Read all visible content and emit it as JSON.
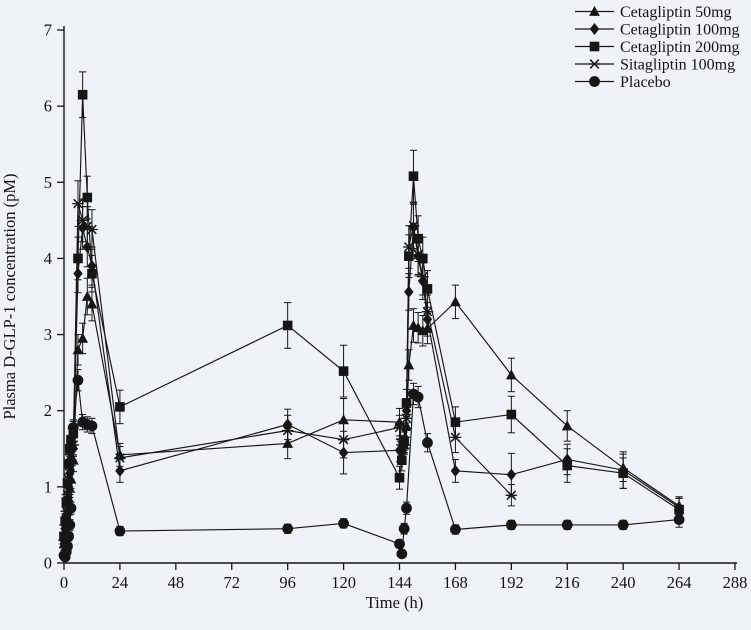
{
  "figure": {
    "background_color": "#eff2f6",
    "line_color": "#161616",
    "text_color": "#141414"
  },
  "chart_data": {
    "type": "line",
    "title": "",
    "xlabel": "Time (h)",
    "ylabel": "Plasma D-GLP-1 concentration (pM)",
    "xlim": [
      0,
      288
    ],
    "ylim": [
      0,
      7
    ],
    "xticks": [
      0,
      24,
      48,
      72,
      96,
      120,
      144,
      168,
      192,
      216,
      240,
      264,
      288
    ],
    "yticks": [
      0,
      1,
      2,
      3,
      4,
      5,
      6,
      7
    ],
    "grid": false,
    "error_bars": true,
    "legend_position": "top-right",
    "legend_entries": [
      "Cetagliptin 50mg",
      "Cetagliptin 100mg",
      "Cetagliptin 200mg",
      "Sitagliptin 100mg",
      "Placebo"
    ],
    "series": [
      {
        "name": "Cetagliptin 50mg",
        "marker": "triangle",
        "points": [
          [
            0,
            0.25,
            0.08
          ],
          [
            0.5,
            0.38,
            0.08
          ],
          [
            1,
            0.52,
            0.1
          ],
          [
            1.5,
            0.68,
            0.1
          ],
          [
            2,
            0.85,
            0.12
          ],
          [
            2.5,
            0.98,
            0.12
          ],
          [
            3,
            1.1,
            0.12
          ],
          [
            4,
            1.35,
            0.15
          ],
          [
            6,
            2.8,
            0.2
          ],
          [
            8,
            2.95,
            0.2
          ],
          [
            10,
            3.5,
            0.24
          ],
          [
            12,
            3.4,
            0.22
          ],
          [
            24,
            1.42,
            0.15
          ],
          [
            96,
            1.57,
            0.2
          ],
          [
            120,
            1.88,
            0.28
          ],
          [
            144,
            1.85,
            0.18
          ],
          [
            145,
            1.5,
            0.12
          ],
          [
            146,
            1.55,
            0.12
          ],
          [
            147,
            1.8,
            0.15
          ],
          [
            148,
            2.6,
            0.2
          ],
          [
            150,
            3.12,
            0.22
          ],
          [
            152,
            3.09,
            0.2
          ],
          [
            154,
            3.05,
            0.2
          ],
          [
            156,
            3.08,
            0.2
          ],
          [
            168,
            3.43,
            0.22
          ],
          [
            192,
            2.47,
            0.22
          ],
          [
            216,
            1.8,
            0.2
          ],
          [
            240,
            1.25,
            0.18
          ],
          [
            264,
            0.75,
            0.12
          ]
        ]
      },
      {
        "name": "Cetagliptin 100mg",
        "marker": "diamond",
        "points": [
          [
            0,
            0.3,
            0.08
          ],
          [
            0.5,
            0.45,
            0.08
          ],
          [
            1,
            0.62,
            0.1
          ],
          [
            1.5,
            0.82,
            0.1
          ],
          [
            2,
            1.0,
            0.12
          ],
          [
            2.5,
            1.18,
            0.12
          ],
          [
            3,
            1.35,
            0.14
          ],
          [
            4,
            1.5,
            0.15
          ],
          [
            6,
            3.8,
            0.25
          ],
          [
            8,
            4.4,
            0.28
          ],
          [
            10,
            4.15,
            0.26
          ],
          [
            12,
            3.9,
            0.25
          ],
          [
            24,
            1.21,
            0.15
          ],
          [
            96,
            1.82,
            0.2
          ],
          [
            120,
            1.45,
            0.28
          ],
          [
            144,
            1.48,
            0.15
          ],
          [
            145,
            1.45,
            0.12
          ],
          [
            146,
            1.6,
            0.12
          ],
          [
            147,
            2.0,
            0.16
          ],
          [
            148,
            3.56,
            0.24
          ],
          [
            150,
            4.41,
            0.3
          ],
          [
            152,
            4.03,
            0.26
          ],
          [
            154,
            3.7,
            0.24
          ],
          [
            156,
            3.2,
            0.22
          ],
          [
            168,
            1.21,
            0.15
          ],
          [
            192,
            1.16,
            0.28
          ],
          [
            216,
            1.36,
            0.2
          ],
          [
            240,
            1.22,
            0.24
          ],
          [
            264,
            0.73,
            0.12
          ]
        ]
      },
      {
        "name": "Cetagliptin 200mg",
        "marker": "square",
        "points": [
          [
            0,
            0.35,
            0.1
          ],
          [
            0.5,
            0.55,
            0.1
          ],
          [
            1,
            0.8,
            0.1
          ],
          [
            1.5,
            1.05,
            0.12
          ],
          [
            2,
            1.3,
            0.13
          ],
          [
            2.5,
            1.5,
            0.14
          ],
          [
            3,
            1.62,
            0.15
          ],
          [
            4,
            1.7,
            0.16
          ],
          [
            6,
            4.0,
            0.28
          ],
          [
            8,
            6.15,
            0.3
          ],
          [
            10,
            4.8,
            0.28
          ],
          [
            12,
            3.8,
            0.24
          ],
          [
            24,
            2.05,
            0.22
          ],
          [
            96,
            3.12,
            0.3
          ],
          [
            120,
            2.52,
            0.34
          ],
          [
            144,
            1.12,
            0.15
          ],
          [
            145,
            1.35,
            0.14
          ],
          [
            146,
            1.6,
            0.15
          ],
          [
            147,
            2.1,
            0.18
          ],
          [
            148,
            4.03,
            0.28
          ],
          [
            150,
            5.08,
            0.34
          ],
          [
            152,
            4.26,
            0.3
          ],
          [
            154,
            4.0,
            0.28
          ],
          [
            156,
            3.6,
            0.24
          ],
          [
            168,
            1.85,
            0.2
          ],
          [
            192,
            1.95,
            0.24
          ],
          [
            216,
            1.28,
            0.22
          ],
          [
            240,
            1.18,
            0.2
          ],
          [
            264,
            0.7,
            0.15
          ]
        ]
      },
      {
        "name": "Sitagliptin 100mg",
        "marker": "star",
        "points": [
          [
            0,
            0.3,
            0.08
          ],
          [
            0.5,
            0.5,
            0.08
          ],
          [
            1,
            0.68,
            0.1
          ],
          [
            1.5,
            0.9,
            0.1
          ],
          [
            2,
            1.1,
            0.12
          ],
          [
            2.5,
            1.28,
            0.12
          ],
          [
            3,
            1.42,
            0.14
          ],
          [
            4,
            1.55,
            0.15
          ],
          [
            6,
            4.72,
            0.3
          ],
          [
            8,
            4.5,
            0.28
          ],
          [
            10,
            4.42,
            0.26
          ],
          [
            12,
            4.38,
            0.26
          ],
          [
            24,
            1.38,
            0.15
          ],
          [
            96,
            1.74,
            0.2
          ],
          [
            120,
            1.62,
            0.24
          ],
          [
            144,
            1.78,
            0.16
          ],
          [
            145,
            1.55,
            0.12
          ],
          [
            146,
            1.55,
            0.12
          ],
          [
            147,
            1.9,
            0.16
          ],
          [
            148,
            4.15,
            0.28
          ],
          [
            150,
            4.43,
            0.3
          ],
          [
            152,
            4.05,
            0.26
          ],
          [
            154,
            3.76,
            0.24
          ],
          [
            156,
            3.3,
            0.22
          ],
          [
            168,
            1.65,
            0.2
          ],
          [
            192,
            0.89,
            0.14
          ]
        ]
      },
      {
        "name": "Placebo",
        "marker": "circle",
        "points": [
          [
            0,
            0.1,
            0.04
          ],
          [
            0.5,
            0.08,
            0.04
          ],
          [
            1,
            0.15,
            0.05
          ],
          [
            1.5,
            0.22,
            0.05
          ],
          [
            2,
            0.35,
            0.06
          ],
          [
            2.5,
            0.5,
            0.07
          ],
          [
            3,
            0.72,
            0.08
          ],
          [
            4,
            1.78,
            0.1
          ],
          [
            6,
            2.4,
            0.14
          ],
          [
            8,
            1.85,
            0.1
          ],
          [
            10,
            1.82,
            0.1
          ],
          [
            12,
            1.8,
            0.1
          ],
          [
            24,
            0.42,
            0.06
          ],
          [
            96,
            0.45,
            0.06
          ],
          [
            120,
            0.52,
            0.06
          ],
          [
            144,
            0.25,
            0.05
          ],
          [
            145,
            0.12,
            0.04
          ],
          [
            146,
            0.45,
            0.07
          ],
          [
            147,
            0.72,
            0.08
          ],
          [
            150,
            2.22,
            0.14
          ],
          [
            152,
            2.18,
            0.14
          ],
          [
            156,
            1.58,
            0.12
          ],
          [
            168,
            0.44,
            0.06
          ],
          [
            192,
            0.5,
            0.06
          ],
          [
            216,
            0.5,
            0.06
          ],
          [
            240,
            0.5,
            0.06
          ],
          [
            264,
            0.57,
            0.1
          ]
        ]
      }
    ]
  }
}
